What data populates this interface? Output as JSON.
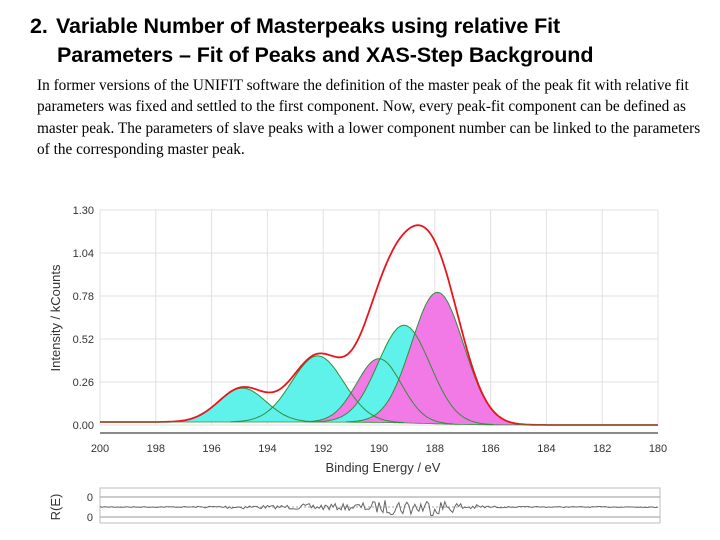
{
  "slide": {
    "number": "2.",
    "title_line1": "Variable Number of Masterpeaks using relative  Fit",
    "title_line2": "Parameters – Fit of Peaks and XAS-Step Background",
    "body": "In former versions of the UNIFIT software the definition of the master peak of the peak fit with relative fit parameters was fixed and settled to the first component. Now, every peak-fit component can be defined as master peak. The parameters of slave peaks with a lower component number can be linked to the parameters of the corresponding master peak."
  },
  "chart_data": [
    {
      "type": "line",
      "xlabel": "Binding Energy / eV",
      "ylabel": "Intensity / kCounts",
      "x_reversed": true,
      "xlim": [
        200,
        180
      ],
      "ylim": [
        0.0,
        1.3
      ],
      "x_ticks": [
        "200",
        "198",
        "196",
        "194",
        "192",
        "190",
        "188",
        "186",
        "184",
        "182",
        "180"
      ],
      "y_ticks": [
        "0.00",
        "0.26",
        "0.52",
        "0.78",
        "1.04",
        "1.30"
      ],
      "grid": true,
      "colors": {
        "envelope": "#e8151c",
        "component_line": "#2f8f3b",
        "component_fill": "#5ef2ea",
        "master_fill": "#f27ae6",
        "grid": "#e2e2e2"
      },
      "components": [
        {
          "center": 194.9,
          "fwhm": 2.0,
          "height": 0.205,
          "fill": "cyan"
        },
        {
          "center": 192.2,
          "fwhm": 2.2,
          "height": 0.4,
          "fill": "cyan"
        },
        {
          "center": 190.0,
          "fwhm": 1.9,
          "height": 0.385,
          "fill": "magenta"
        },
        {
          "center": 189.1,
          "fwhm": 2.2,
          "height": 0.59,
          "fill": "cyan"
        },
        {
          "center": 187.9,
          "fwhm": 2.2,
          "height": 0.795,
          "fill": "magenta"
        }
      ],
      "step_background": {
        "center": 188.3,
        "width": 0.9,
        "height": 0.018
      }
    },
    {
      "type": "line",
      "ylabel": "R(E)",
      "y_ticks": [
        "0",
        "0"
      ],
      "xlim": [
        200,
        180
      ],
      "residual_color": "#666666"
    }
  ]
}
